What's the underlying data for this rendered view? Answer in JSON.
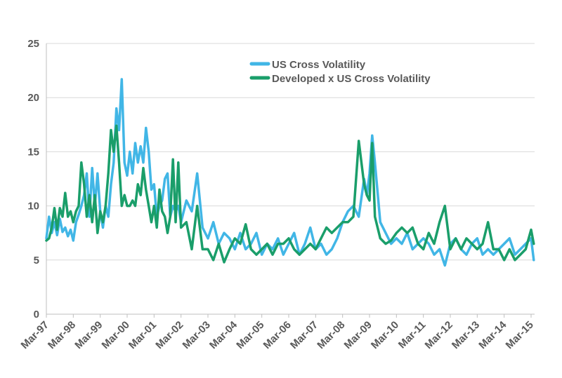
{
  "chart_data": {
    "type": "line",
    "title": "",
    "xlabel": "",
    "ylabel": "",
    "ylim": [
      0,
      25
    ],
    "yticks": [
      0,
      5,
      10,
      15,
      20,
      25
    ],
    "xlim": [
      1997.0,
      2015.1
    ],
    "xtick_labels": [
      "Mar-97",
      "Mar-98",
      "Mar-99",
      "Mar-00",
      "Mar-01",
      "Mar-02",
      "Mar-03",
      "Mar-04",
      "Mar-05",
      "Mar-06",
      "Mar-07",
      "Mar-08",
      "Mar-09",
      "Mar-10",
      "Mar-11",
      "Mar-12",
      "Mar-13",
      "Mar-14",
      "Mar-15"
    ],
    "grid": "horizontal",
    "legend_position": "top-center",
    "series": [
      {
        "name": "US Cross Volatility",
        "color": "#41b6e6",
        "x": [
          1997.0,
          1997.1,
          1997.2,
          1997.3,
          1997.4,
          1997.5,
          1997.6,
          1997.7,
          1997.8,
          1997.9,
          1998.0,
          1998.1,
          1998.2,
          1998.3,
          1998.4,
          1998.5,
          1998.6,
          1998.7,
          1998.8,
          1998.9,
          1999.0,
          1999.1,
          1999.2,
          1999.3,
          1999.4,
          1999.5,
          1999.6,
          1999.7,
          1999.8,
          1999.9,
          2000.0,
          2000.1,
          2000.2,
          2000.3,
          2000.4,
          2000.5,
          2000.6,
          2000.7,
          2000.8,
          2000.9,
          2001.0,
          2001.1,
          2001.2,
          2001.3,
          2001.4,
          2001.5,
          2001.6,
          2001.7,
          2001.8,
          2001.9,
          2002.0,
          2002.2,
          2002.4,
          2002.6,
          2002.8,
          2003.0,
          2003.2,
          2003.4,
          2003.6,
          2003.8,
          2004.0,
          2004.2,
          2004.4,
          2004.6,
          2004.8,
          2005.0,
          2005.2,
          2005.4,
          2005.6,
          2005.8,
          2006.0,
          2006.2,
          2006.4,
          2006.6,
          2006.8,
          2007.0,
          2007.2,
          2007.4,
          2007.6,
          2007.8,
          2008.0,
          2008.2,
          2008.4,
          2008.6,
          2008.8,
          2008.9,
          2009.0,
          2009.1,
          2009.2,
          2009.4,
          2009.6,
          2009.8,
          2010.0,
          2010.2,
          2010.4,
          2010.6,
          2010.8,
          2011.0,
          2011.2,
          2011.4,
          2011.6,
          2011.8,
          2012.0,
          2012.2,
          2012.4,
          2012.6,
          2012.8,
          2013.0,
          2013.2,
          2013.4,
          2013.6,
          2013.8,
          2014.0,
          2014.2,
          2014.4,
          2014.6,
          2014.8,
          2015.0,
          2015.1
        ],
        "values": [
          7.0,
          9.0,
          7.5,
          8.5,
          7.3,
          8.8,
          7.6,
          8.0,
          7.2,
          7.8,
          6.8,
          8.5,
          9.2,
          10.0,
          11.0,
          13.0,
          9.0,
          13.5,
          10.0,
          13.0,
          9.5,
          8.0,
          10.0,
          9.0,
          12.0,
          14.0,
          19.0,
          17.0,
          21.7,
          14.0,
          12.8,
          15.0,
          13.0,
          15.8,
          14.0,
          15.5,
          14.0,
          17.2,
          15.0,
          11.5,
          12.0,
          9.0,
          10.0,
          10.5,
          12.5,
          13.0,
          9.0,
          10.0,
          9.5,
          10.0,
          8.5,
          10.5,
          9.5,
          13.0,
          8.0,
          7.0,
          8.5,
          6.5,
          7.5,
          7.0,
          6.0,
          7.5,
          6.0,
          6.5,
          7.5,
          5.5,
          6.5,
          6.0,
          7.0,
          5.5,
          6.5,
          7.5,
          5.5,
          6.5,
          8.0,
          6.0,
          6.5,
          5.5,
          6.0,
          7.0,
          8.5,
          9.5,
          10.0,
          9.0,
          12.5,
          11.0,
          13.0,
          16.5,
          14.0,
          8.5,
          7.5,
          6.5,
          7.0,
          6.5,
          7.5,
          6.0,
          6.5,
          7.0,
          6.5,
          5.5,
          6.0,
          4.5,
          6.5,
          7.0,
          6.0,
          5.5,
          6.5,
          7.0,
          5.5,
          6.0,
          5.5,
          6.0,
          6.5,
          7.0,
          5.5,
          6.0,
          6.5,
          7.0,
          5.0
        ]
      },
      {
        "name": "Developed x US Cross Volatility",
        "color": "#1a9e6a",
        "x": [
          1997.0,
          1997.1,
          1997.2,
          1997.3,
          1997.4,
          1997.5,
          1997.6,
          1997.7,
          1997.8,
          1997.9,
          1998.0,
          1998.1,
          1998.2,
          1998.3,
          1998.4,
          1998.5,
          1998.6,
          1998.7,
          1998.8,
          1998.9,
          1999.0,
          1999.1,
          1999.2,
          1999.3,
          1999.4,
          1999.5,
          1999.6,
          1999.7,
          1999.8,
          1999.9,
          2000.0,
          2000.1,
          2000.2,
          2000.3,
          2000.4,
          2000.5,
          2000.6,
          2000.7,
          2000.8,
          2000.9,
          2001.0,
          2001.1,
          2001.2,
          2001.3,
          2001.4,
          2001.5,
          2001.6,
          2001.7,
          2001.8,
          2001.9,
          2002.0,
          2002.2,
          2002.4,
          2002.6,
          2002.8,
          2003.0,
          2003.2,
          2003.4,
          2003.6,
          2003.8,
          2004.0,
          2004.2,
          2004.4,
          2004.6,
          2004.8,
          2005.0,
          2005.2,
          2005.4,
          2005.6,
          2005.8,
          2006.0,
          2006.2,
          2006.4,
          2006.6,
          2006.8,
          2007.0,
          2007.2,
          2007.4,
          2007.6,
          2007.8,
          2008.0,
          2008.2,
          2008.4,
          2008.6,
          2008.8,
          2008.9,
          2009.0,
          2009.1,
          2009.2,
          2009.4,
          2009.6,
          2009.8,
          2010.0,
          2010.2,
          2010.4,
          2010.6,
          2010.8,
          2011.0,
          2011.2,
          2011.4,
          2011.6,
          2011.8,
          2012.0,
          2012.2,
          2012.4,
          2012.6,
          2012.8,
          2013.0,
          2013.2,
          2013.4,
          2013.6,
          2013.8,
          2014.0,
          2014.2,
          2014.4,
          2014.6,
          2014.8,
          2015.0,
          2015.1
        ],
        "values": [
          6.8,
          7.0,
          8.0,
          9.8,
          7.8,
          9.8,
          9.0,
          11.2,
          9.0,
          9.5,
          8.5,
          9.5,
          10.0,
          14.0,
          12.0,
          9.0,
          11.0,
          8.5,
          11.0,
          7.5,
          9.5,
          8.5,
          10.0,
          13.0,
          17.0,
          15.0,
          17.4,
          14.0,
          10.0,
          11.0,
          10.0,
          10.0,
          10.5,
          10.0,
          12.0,
          11.0,
          13.5,
          11.5,
          10.0,
          8.5,
          10.0,
          8.0,
          11.5,
          9.5,
          9.0,
          7.5,
          9.0,
          14.3,
          8.5,
          14.0,
          8.0,
          8.5,
          6.0,
          10.0,
          6.0,
          6.0,
          5.0,
          6.5,
          4.8,
          6.0,
          7.0,
          6.5,
          8.3,
          6.0,
          5.5,
          6.0,
          6.5,
          5.5,
          6.5,
          6.5,
          7.0,
          6.0,
          5.5,
          6.0,
          6.5,
          6.0,
          7.0,
          8.0,
          7.5,
          8.0,
          8.5,
          8.5,
          9.0,
          16.0,
          12.0,
          11.0,
          10.5,
          15.8,
          9.0,
          7.0,
          6.5,
          6.8,
          7.5,
          8.0,
          7.5,
          8.0,
          6.5,
          6.0,
          7.5,
          6.5,
          8.5,
          10.0,
          6.0,
          7.0,
          6.0,
          7.0,
          6.5,
          6.0,
          6.5,
          8.5,
          6.0,
          6.0,
          5.0,
          6.0,
          5.0,
          5.5,
          6.0,
          7.8,
          6.5
        ]
      }
    ]
  }
}
